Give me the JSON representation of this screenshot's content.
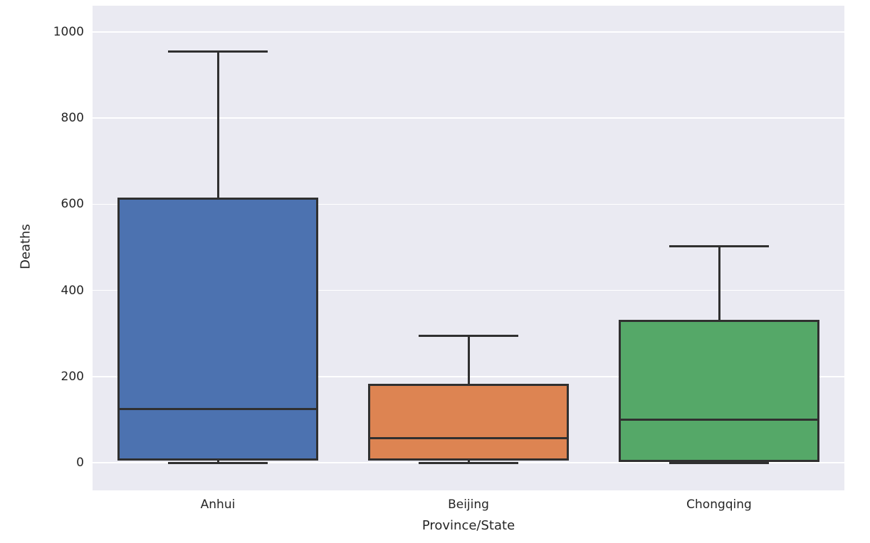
{
  "figure": {
    "background": "#ffffff",
    "plot_background": "#eaeaf2",
    "grid_color": "#ffffff",
    "edge_color": "#303030",
    "text_color": "#262626"
  },
  "chart_data": {
    "type": "box",
    "title": "",
    "xlabel": "Province/State",
    "ylabel": "Deaths",
    "ylim": [
      0,
      1000
    ],
    "yticks": [
      0,
      200,
      400,
      600,
      800,
      1000
    ],
    "grid": true,
    "legend_position": "none",
    "categories": [
      "Anhui",
      "Beijing",
      "Chongqing"
    ],
    "series": [
      {
        "name": "Anhui",
        "color": "#4c72b0",
        "whisker_low": 0,
        "q1": 5,
        "median": 125,
        "q3": 615,
        "whisker_high": 955
      },
      {
        "name": "Beijing",
        "color": "#dd8452",
        "whisker_low": 0,
        "q1": 5,
        "median": 57,
        "q3": 183,
        "whisker_high": 295
      },
      {
        "name": "Chongqing",
        "color": "#55a868",
        "whisker_low": 0,
        "q1": 2,
        "median": 100,
        "q3": 332,
        "whisker_high": 502
      }
    ]
  }
}
